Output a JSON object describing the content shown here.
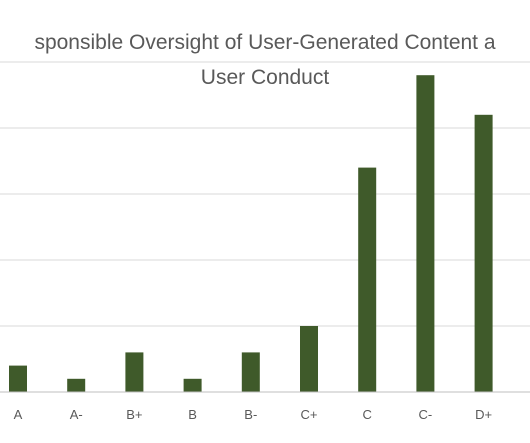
{
  "chart_data": {
    "type": "bar",
    "title_lines": [
      "sponsible Oversight of User-Generated Content a",
      "User Conduct"
    ],
    "categories": [
      "A",
      "A-",
      "B+",
      "B",
      "B-",
      "C+",
      "C",
      "C-",
      "D+"
    ],
    "values": [
      2,
      1,
      3,
      1,
      3,
      5,
      17,
      24,
      21
    ],
    "ylim": [
      0,
      25
    ],
    "grid": true,
    "xlabel": "",
    "ylabel": "",
    "bar_color": "#3f5a2a"
  },
  "colors": {
    "text": "#595959",
    "grid": "#d9d9d9",
    "axis": "#bfbfbf",
    "background": "#ffffff"
  }
}
